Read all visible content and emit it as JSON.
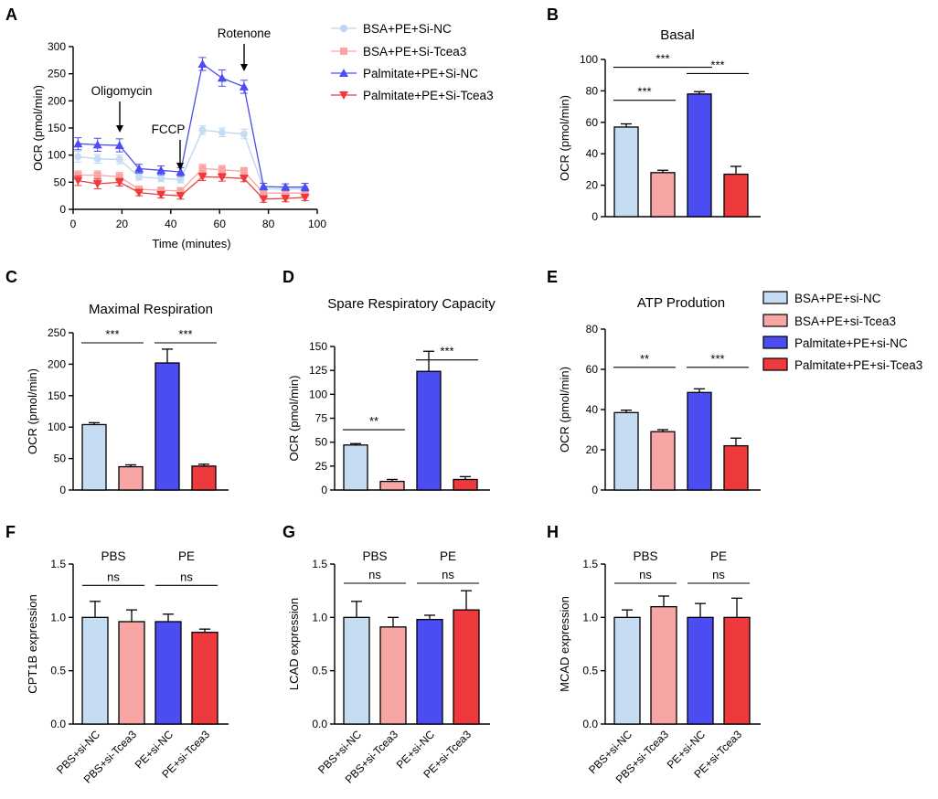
{
  "colors": {
    "light_blue": "#c6dcf3",
    "light_blue_line": "#bcd5f0",
    "light_red": "#f7a6a4",
    "blue": "#4b4cf2",
    "red": "#ef3a3d"
  },
  "legend_a": [
    "BSA+PE+Si-NC",
    "BSA+PE+Si-Tcea3",
    "Palmitate+PE+Si-NC",
    "Palmitate+PE+Si-Tcea3"
  ],
  "legend_e": [
    "BSA+PE+si-NC",
    "BSA+PE+si-Tcea3",
    "Palmitate+PE+si-NC",
    "Palmitate+PE+si-Tcea3"
  ],
  "chart_data": [
    {
      "panel": "A",
      "type": "line",
      "title": "",
      "xlabel": "Time (minutes)",
      "ylabel": "OCR (pmol/min)",
      "xlim": [
        0,
        100
      ],
      "ylim": [
        0,
        300
      ],
      "xticks": [
        0,
        20,
        40,
        60,
        80,
        100
      ],
      "yticks": [
        0,
        50,
        100,
        150,
        200,
        250,
        300
      ],
      "x": [
        2,
        10,
        19,
        27,
        36,
        44,
        53,
        61,
        70,
        78,
        87,
        95
      ],
      "series": [
        {
          "name": "BSA+PE+Si-NC",
          "marker": "circle",
          "values": [
            97,
            93,
            92,
            60,
            57,
            55,
            146,
            142,
            139,
            38,
            37,
            38
          ],
          "errors": [
            10,
            8,
            8,
            6,
            6,
            6,
            8,
            8,
            9,
            5,
            5,
            5
          ]
        },
        {
          "name": "BSA+PE+Si-Tcea3",
          "marker": "square",
          "values": [
            63,
            63,
            60,
            37,
            35,
            34,
            75,
            73,
            70,
            30,
            30,
            30
          ],
          "errors": [
            8,
            8,
            8,
            6,
            6,
            6,
            8,
            8,
            7,
            6,
            6,
            6
          ]
        },
        {
          "name": "Palmitate+PE+Si-NC",
          "marker": "triangle-up",
          "values": [
            121,
            119,
            118,
            75,
            72,
            69,
            268,
            242,
            226,
            42,
            41,
            41
          ],
          "errors": [
            11,
            12,
            12,
            8,
            8,
            8,
            12,
            15,
            12,
            6,
            6,
            7
          ]
        },
        {
          "name": "Palmitate+PE+Si-Tcea3",
          "marker": "triangle-down",
          "values": [
            53,
            47,
            50,
            31,
            27,
            25,
            60,
            59,
            57,
            19,
            20,
            22
          ],
          "errors": [
            9,
            9,
            7,
            6,
            6,
            6,
            7,
            7,
            6,
            6,
            6,
            6
          ]
        }
      ],
      "annotations": [
        {
          "text": "Oligomycin",
          "x": 19
        },
        {
          "text": "FCCP",
          "x": 44
        },
        {
          "text": "Rotenone",
          "x": 70
        }
      ]
    },
    {
      "panel": "B",
      "type": "bar",
      "title": "Basal",
      "ylabel": "OCR (pmol/min)",
      "ylim": [
        0,
        100
      ],
      "yticks": [
        0,
        20,
        40,
        60,
        80,
        100
      ],
      "categories": [
        "BSA+PE+si-NC",
        "BSA+PE+si-Tcea3",
        "Palmitate+PE+si-NC",
        "Palmitate+PE+si-Tcea3"
      ],
      "values": [
        57,
        28,
        78,
        27
      ],
      "errors": [
        2,
        1.5,
        1.5,
        5
      ],
      "significance": [
        {
          "from": 0,
          "to": 1,
          "text": "***",
          "y": 74
        },
        {
          "from": 0,
          "to": 2,
          "text": "***",
          "y": 95
        },
        {
          "from": 2,
          "to": 3,
          "text": "***",
          "y": 91
        }
      ]
    },
    {
      "panel": "C",
      "type": "bar",
      "title": "Maximal Respiration",
      "ylabel": "OCR (pmol/min)",
      "ylim": [
        0,
        250
      ],
      "yticks": [
        0,
        50,
        100,
        150,
        200,
        250
      ],
      "categories": [
        "BSA+PE+si-NC",
        "BSA+PE+si-Tcea3",
        "Palmitate+PE+si-NC",
        "Palmitate+PE+si-Tcea3"
      ],
      "values": [
        104,
        37,
        202,
        38
      ],
      "errors": [
        3,
        3,
        22,
        3
      ],
      "significance": [
        {
          "from": 0,
          "to": 1,
          "text": "***",
          "y": 234
        },
        {
          "from": 2,
          "to": 3,
          "text": "***",
          "y": 234
        }
      ]
    },
    {
      "panel": "D",
      "type": "bar",
      "title": "Spare Respiratory Capacity",
      "ylabel": "OCR (pmol/min)",
      "ylim": [
        0,
        150
      ],
      "yticks": [
        0,
        25,
        50,
        75,
        100,
        125,
        150
      ],
      "categories": [
        "BSA+PE+si-NC",
        "BSA+PE+si-Tcea3",
        "Palmitate+PE+si-NC",
        "Palmitate+PE+si-Tcea3"
      ],
      "values": [
        47,
        9,
        124,
        11
      ],
      "errors": [
        1.5,
        2,
        21,
        3
      ],
      "significance": [
        {
          "from": 0,
          "to": 1,
          "text": "**",
          "y": 63
        },
        {
          "from": 2,
          "to": 3,
          "text": "***",
          "y": 136
        }
      ]
    },
    {
      "panel": "E",
      "type": "bar",
      "title": "ATP Prodution",
      "ylabel": "OCR (pmol/min)",
      "ylim": [
        0,
        80
      ],
      "yticks": [
        0,
        20,
        40,
        60,
        80
      ],
      "categories": [
        "BSA+PE+si-NC",
        "BSA+PE+si-Tcea3",
        "Palmitate+PE+si-NC",
        "Palmitate+PE+si-Tcea3"
      ],
      "values": [
        38.5,
        29,
        48.5,
        22
      ],
      "errors": [
        1.2,
        1,
        1.8,
        3.8
      ],
      "significance": [
        {
          "from": 0,
          "to": 1,
          "text": "**",
          "y": 61
        },
        {
          "from": 2,
          "to": 3,
          "text": "***",
          "y": 61
        }
      ]
    },
    {
      "panel": "F",
      "type": "bar",
      "title": "",
      "ylabel": "CPT1B expression",
      "ylim": [
        0,
        1.5
      ],
      "yticks": [
        "0.0",
        "0.5",
        "1.0",
        "1.5"
      ],
      "categories": [
        "PBS+si-NC",
        "PBS+si-Tcea3",
        "PE+si-NC",
        "PE+si-Tcea3"
      ],
      "values": [
        1.0,
        0.96,
        0.96,
        0.86
      ],
      "errors": [
        0.15,
        0.11,
        0.07,
        0.03
      ],
      "group_labels": [
        {
          "text": "PBS",
          "center": 0.5
        },
        {
          "text": "PE",
          "center": 2.5
        }
      ],
      "significance": [
        {
          "from": 0,
          "to": 1,
          "text": "ns",
          "y": 1.3
        },
        {
          "from": 2,
          "to": 3,
          "text": "ns",
          "y": 1.3
        }
      ]
    },
    {
      "panel": "G",
      "type": "bar",
      "title": "",
      "ylabel": "LCAD expression",
      "ylim": [
        0,
        1.5
      ],
      "yticks": [
        "0.0",
        "0.5",
        "1.0",
        "1.5"
      ],
      "categories": [
        "PBS+si-NC",
        "PBS+si-Tcea3",
        "PE+si-NC",
        "PE+si-Tcea3"
      ],
      "values": [
        1.0,
        0.91,
        0.98,
        1.07
      ],
      "errors": [
        0.15,
        0.09,
        0.04,
        0.18
      ],
      "group_labels": [
        {
          "text": "PBS",
          "center": 0.5
        },
        {
          "text": "PE",
          "center": 2.5
        }
      ],
      "significance": [
        {
          "from": 0,
          "to": 1,
          "text": "ns",
          "y": 1.32
        },
        {
          "from": 2,
          "to": 3,
          "text": "ns",
          "y": 1.32
        }
      ]
    },
    {
      "panel": "H",
      "type": "bar",
      "title": "",
      "ylabel": "MCAD expression",
      "ylim": [
        0,
        1.5
      ],
      "yticks": [
        "0.0",
        "0.5",
        "1.0",
        "1.5"
      ],
      "categories": [
        "PBS+si-NC",
        "PBS+si-Tcea3",
        "PE+si-NC",
        "PE+si-Tcea3"
      ],
      "values": [
        1.0,
        1.1,
        1.0,
        1.0
      ],
      "errors": [
        0.07,
        0.1,
        0.13,
        0.18
      ],
      "group_labels": [
        {
          "text": "PBS",
          "center": 0.5
        },
        {
          "text": "PE",
          "center": 2.5
        }
      ],
      "significance": [
        {
          "from": 0,
          "to": 1,
          "text": "ns",
          "y": 1.32
        },
        {
          "from": 2,
          "to": 3,
          "text": "ns",
          "y": 1.32
        }
      ]
    }
  ]
}
